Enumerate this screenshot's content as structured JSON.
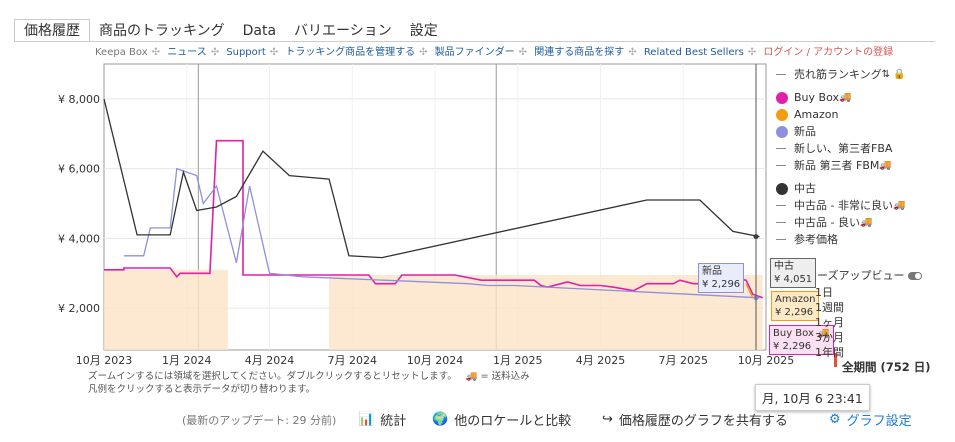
{
  "tabs": [
    "価格履歴",
    "商品のトラッキング",
    "Data",
    "バリエーション",
    "設定"
  ],
  "links": [
    {
      "text": "Keepa Box",
      "style": "gray"
    },
    {
      "text": "ニュース",
      "style": "blue"
    },
    {
      "text": "Support",
      "style": "blue"
    },
    {
      "text": "トラッキング商品を管理する",
      "style": "blue"
    },
    {
      "text": "製品ファインダー",
      "style": "blue"
    },
    {
      "text": "関連する商品を探す",
      "style": "blue"
    },
    {
      "text": "Related Best Sellers",
      "style": "blue"
    },
    {
      "text": "ログイン / アカウントの登録",
      "style": "red"
    }
  ],
  "chart_data": {
    "type": "line",
    "y_ticks": [
      "¥ 8,000",
      "¥ 6,000",
      "¥ 4,000",
      "¥ 2,000"
    ],
    "x_ticks": [
      "10月 2023",
      "1月 2024",
      "4月 2024",
      "7月 2024",
      "10月 2024",
      "1月 2025",
      "4月 2025",
      "7月 2025",
      "10月 2025"
    ],
    "ylim": [
      800,
      9000
    ],
    "grid": true,
    "series": [
      {
        "name": "Buy Box",
        "color": "#e020a8",
        "points": [
          [
            0,
            3100
          ],
          [
            0.03,
            3100
          ],
          [
            0.03,
            3150
          ],
          [
            0.1,
            3150
          ],
          [
            0.11,
            2900
          ],
          [
            0.115,
            3000
          ],
          [
            0.16,
            3000
          ],
          [
            0.17,
            6800
          ],
          [
            0.21,
            6800
          ],
          [
            0.21,
            2950
          ],
          [
            0.4,
            2950
          ],
          [
            0.41,
            2700
          ],
          [
            0.44,
            2700
          ],
          [
            0.45,
            2950
          ],
          [
            0.53,
            2950
          ],
          [
            0.57,
            2800
          ],
          [
            0.65,
            2800
          ],
          [
            0.66,
            2650
          ],
          [
            0.67,
            2600
          ],
          [
            0.7,
            2750
          ],
          [
            0.72,
            2650
          ],
          [
            0.75,
            2650
          ],
          [
            0.77,
            2600
          ],
          [
            0.8,
            2500
          ],
          [
            0.82,
            2700
          ],
          [
            0.86,
            2700
          ],
          [
            0.87,
            2800
          ],
          [
            0.89,
            2700
          ],
          [
            0.9,
            2700
          ],
          [
            0.92,
            2800
          ],
          [
            0.94,
            2900
          ],
          [
            0.97,
            2800
          ],
          [
            0.98,
            2400
          ],
          [
            0.995,
            2296
          ]
        ]
      },
      {
        "name": "新品",
        "color": "#8f8fdf",
        "points": [
          [
            0.03,
            3500
          ],
          [
            0.06,
            3500
          ],
          [
            0.07,
            4300
          ],
          [
            0.1,
            4300
          ],
          [
            0.11,
            6000
          ],
          [
            0.14,
            5800
          ],
          [
            0.15,
            5000
          ],
          [
            0.17,
            5500
          ],
          [
            0.2,
            3300
          ],
          [
            0.22,
            5500
          ],
          [
            0.25,
            3000
          ],
          [
            0.3,
            2900
          ],
          [
            0.55,
            2700
          ],
          [
            0.58,
            2650
          ],
          [
            0.62,
            2650
          ],
          [
            0.99,
            2296
          ]
        ]
      },
      {
        "name": "中古",
        "color": "#333333",
        "points": [
          [
            0,
            8000
          ],
          [
            0.05,
            4100
          ],
          [
            0.1,
            4100
          ],
          [
            0.12,
            5900
          ],
          [
            0.14,
            4800
          ],
          [
            0.17,
            4900
          ],
          [
            0.2,
            5200
          ],
          [
            0.24,
            6500
          ],
          [
            0.28,
            5800
          ],
          [
            0.34,
            5700
          ],
          [
            0.37,
            3500
          ],
          [
            0.42,
            3450
          ],
          [
            0.82,
            5100
          ],
          [
            0.9,
            5100
          ],
          [
            0.95,
            4200
          ],
          [
            0.99,
            4051
          ]
        ]
      },
      {
        "name": "Amazon",
        "color": "#f39c12",
        "points": [
          [
            0.97,
            2700
          ],
          [
            0.98,
            2296
          ]
        ]
      }
    ],
    "current_values": {
      "中古": "¥ 4,051",
      "新品": "¥ 2,296",
      "Amazon": "¥ 2,296",
      "Buy Box": "¥ 2,296"
    }
  },
  "tooltips": {
    "used_label": "中古",
    "used_value": "¥ 4,051",
    "new_label": "新品",
    "new_value": "¥ 2,296",
    "amazon_label": "Amazon",
    "amazon_value": "¥ 2,296",
    "buybox_label": "Buy Box",
    "buybox_value": "¥ 2,296"
  },
  "legend": {
    "items": [
      {
        "label": "売れ筋ランキング",
        "mark": "dash"
      },
      {
        "label": "Buy Box",
        "mark": "dot",
        "color": "#e020a8",
        "truck": true
      },
      {
        "label": "Amazon",
        "mark": "dot",
        "color": "#f39c12"
      },
      {
        "label": "新品",
        "mark": "dot",
        "color": "#8f8fdf"
      },
      {
        "label": "新しい、第三者FBA",
        "mark": "dash"
      },
      {
        "label": "新品 第三者 FBM",
        "mark": "dash",
        "truck": true
      },
      {
        "label": "中古",
        "mark": "dot",
        "color": "#333333"
      },
      {
        "label": "中古品 - 非常に良い",
        "mark": "dash",
        "truck": true
      },
      {
        "label": "中古品 - 良い",
        "mark": "dash",
        "truck": true
      },
      {
        "label": "参考価格",
        "mark": "dash"
      }
    ],
    "closeup_label": "ーズアップビュー",
    "ranges": [
      "1日",
      "1週間",
      "1ヶ月",
      "3か月",
      "1年間"
    ],
    "selected_range": "全期間 (752 日)"
  },
  "notes": {
    "line1": "ズームインするには領域を選択してください。ダブルクリックするとリセットします。",
    "shipping": "= 送料込み",
    "line2": "凡例をクリックすると表示データが切り替わります。"
  },
  "footer": {
    "last_update": "(最新のアップデート: 29 分前)",
    "stats": "統計",
    "compare": "他のロケールと比較",
    "share": "価格履歴のグラフを共有する",
    "settings": "グラフ設定"
  },
  "date_tooltip": "月, 10月 6 23:41"
}
